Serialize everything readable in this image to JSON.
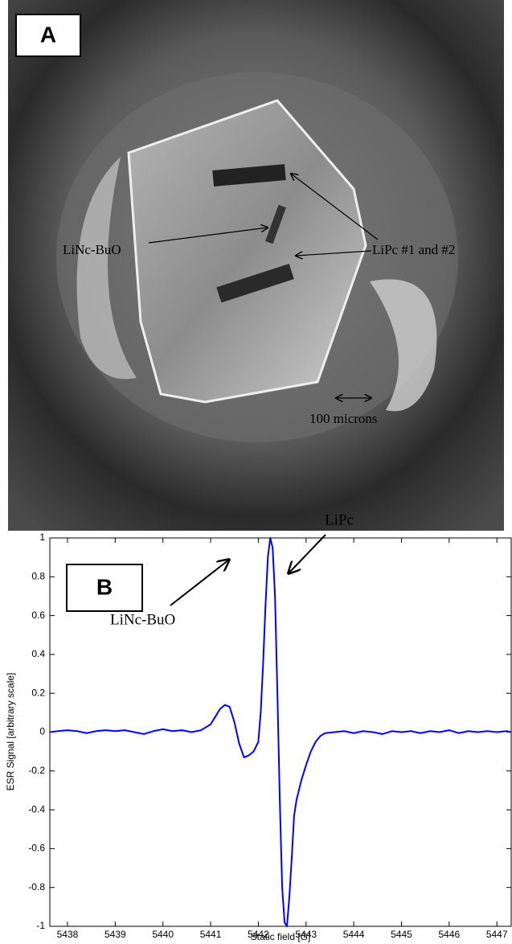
{
  "panel_a": {
    "label": "A",
    "annotations": [
      "LiNc-BuO",
      "LiPc #1 and #2",
      "100 microns"
    ]
  },
  "chart_data": {
    "type": "line",
    "panel_label": "B",
    "annotations": [
      "LiPc",
      "LiNc-BuO"
    ],
    "xlabel": "Static field [G]",
    "ylabel": "ESR Signal [arbitrary scale]",
    "xlim": [
      5437.63,
      5447.3
    ],
    "xticks": [
      5438,
      5439,
      5440,
      5441,
      5442,
      5443,
      5444,
      5445,
      5446,
      5447
    ],
    "ylim": [
      -1,
      1
    ],
    "yticks": [
      -1,
      -0.8,
      -0.6,
      -0.4,
      -0.2,
      0,
      0.2,
      0.4,
      0.6,
      0.8,
      1
    ],
    "grid": false,
    "color": "#0000ff",
    "x": [
      5437.63,
      5437.8,
      5438.0,
      5438.2,
      5438.4,
      5438.6,
      5438.8,
      5439.0,
      5439.2,
      5439.4,
      5439.6,
      5439.8,
      5440.0,
      5440.2,
      5440.4,
      5440.6,
      5440.8,
      5441.0,
      5441.1,
      5441.2,
      5441.3,
      5441.4,
      5441.5,
      5441.6,
      5441.7,
      5441.8,
      5441.9,
      5442.0,
      5442.05,
      5442.1,
      5442.15,
      5442.2,
      5442.25,
      5442.3,
      5442.35,
      5442.4,
      5442.45,
      5442.5,
      5442.55,
      5442.6,
      5442.65,
      5442.7,
      5442.75,
      5442.8,
      5442.9,
      5443.0,
      5443.1,
      5443.2,
      5443.3,
      5443.4,
      5443.6,
      5443.8,
      5444.0,
      5444.2,
      5444.4,
      5444.6,
      5444.8,
      5445.0,
      5445.2,
      5445.4,
      5445.6,
      5445.8,
      5446.0,
      5446.2,
      5446.4,
      5446.6,
      5446.8,
      5447.0,
      5447.2,
      5447.3
    ],
    "values": [
      0,
      0.005,
      0.01,
      0.005,
      -0.005,
      0.005,
      0.01,
      0.005,
      0.01,
      0,
      -0.01,
      0.005,
      0.015,
      0.005,
      0.01,
      0,
      0.01,
      0.04,
      0.08,
      0.12,
      0.14,
      0.13,
      0.05,
      -0.06,
      -0.13,
      -0.12,
      -0.1,
      -0.05,
      0.1,
      0.35,
      0.65,
      0.9,
      1.0,
      0.95,
      0.7,
      0.2,
      -0.35,
      -0.8,
      -0.98,
      -1.0,
      -0.85,
      -0.65,
      -0.43,
      -0.35,
      -0.25,
      -0.17,
      -0.1,
      -0.05,
      -0.02,
      -0.005,
      0,
      0.005,
      -0.005,
      0.005,
      0,
      -0.01,
      0.005,
      0,
      0.005,
      -0.005,
      0.005,
      0,
      0.01,
      -0.005,
      0.005,
      0,
      0.005,
      0,
      0.005,
      0
    ]
  }
}
